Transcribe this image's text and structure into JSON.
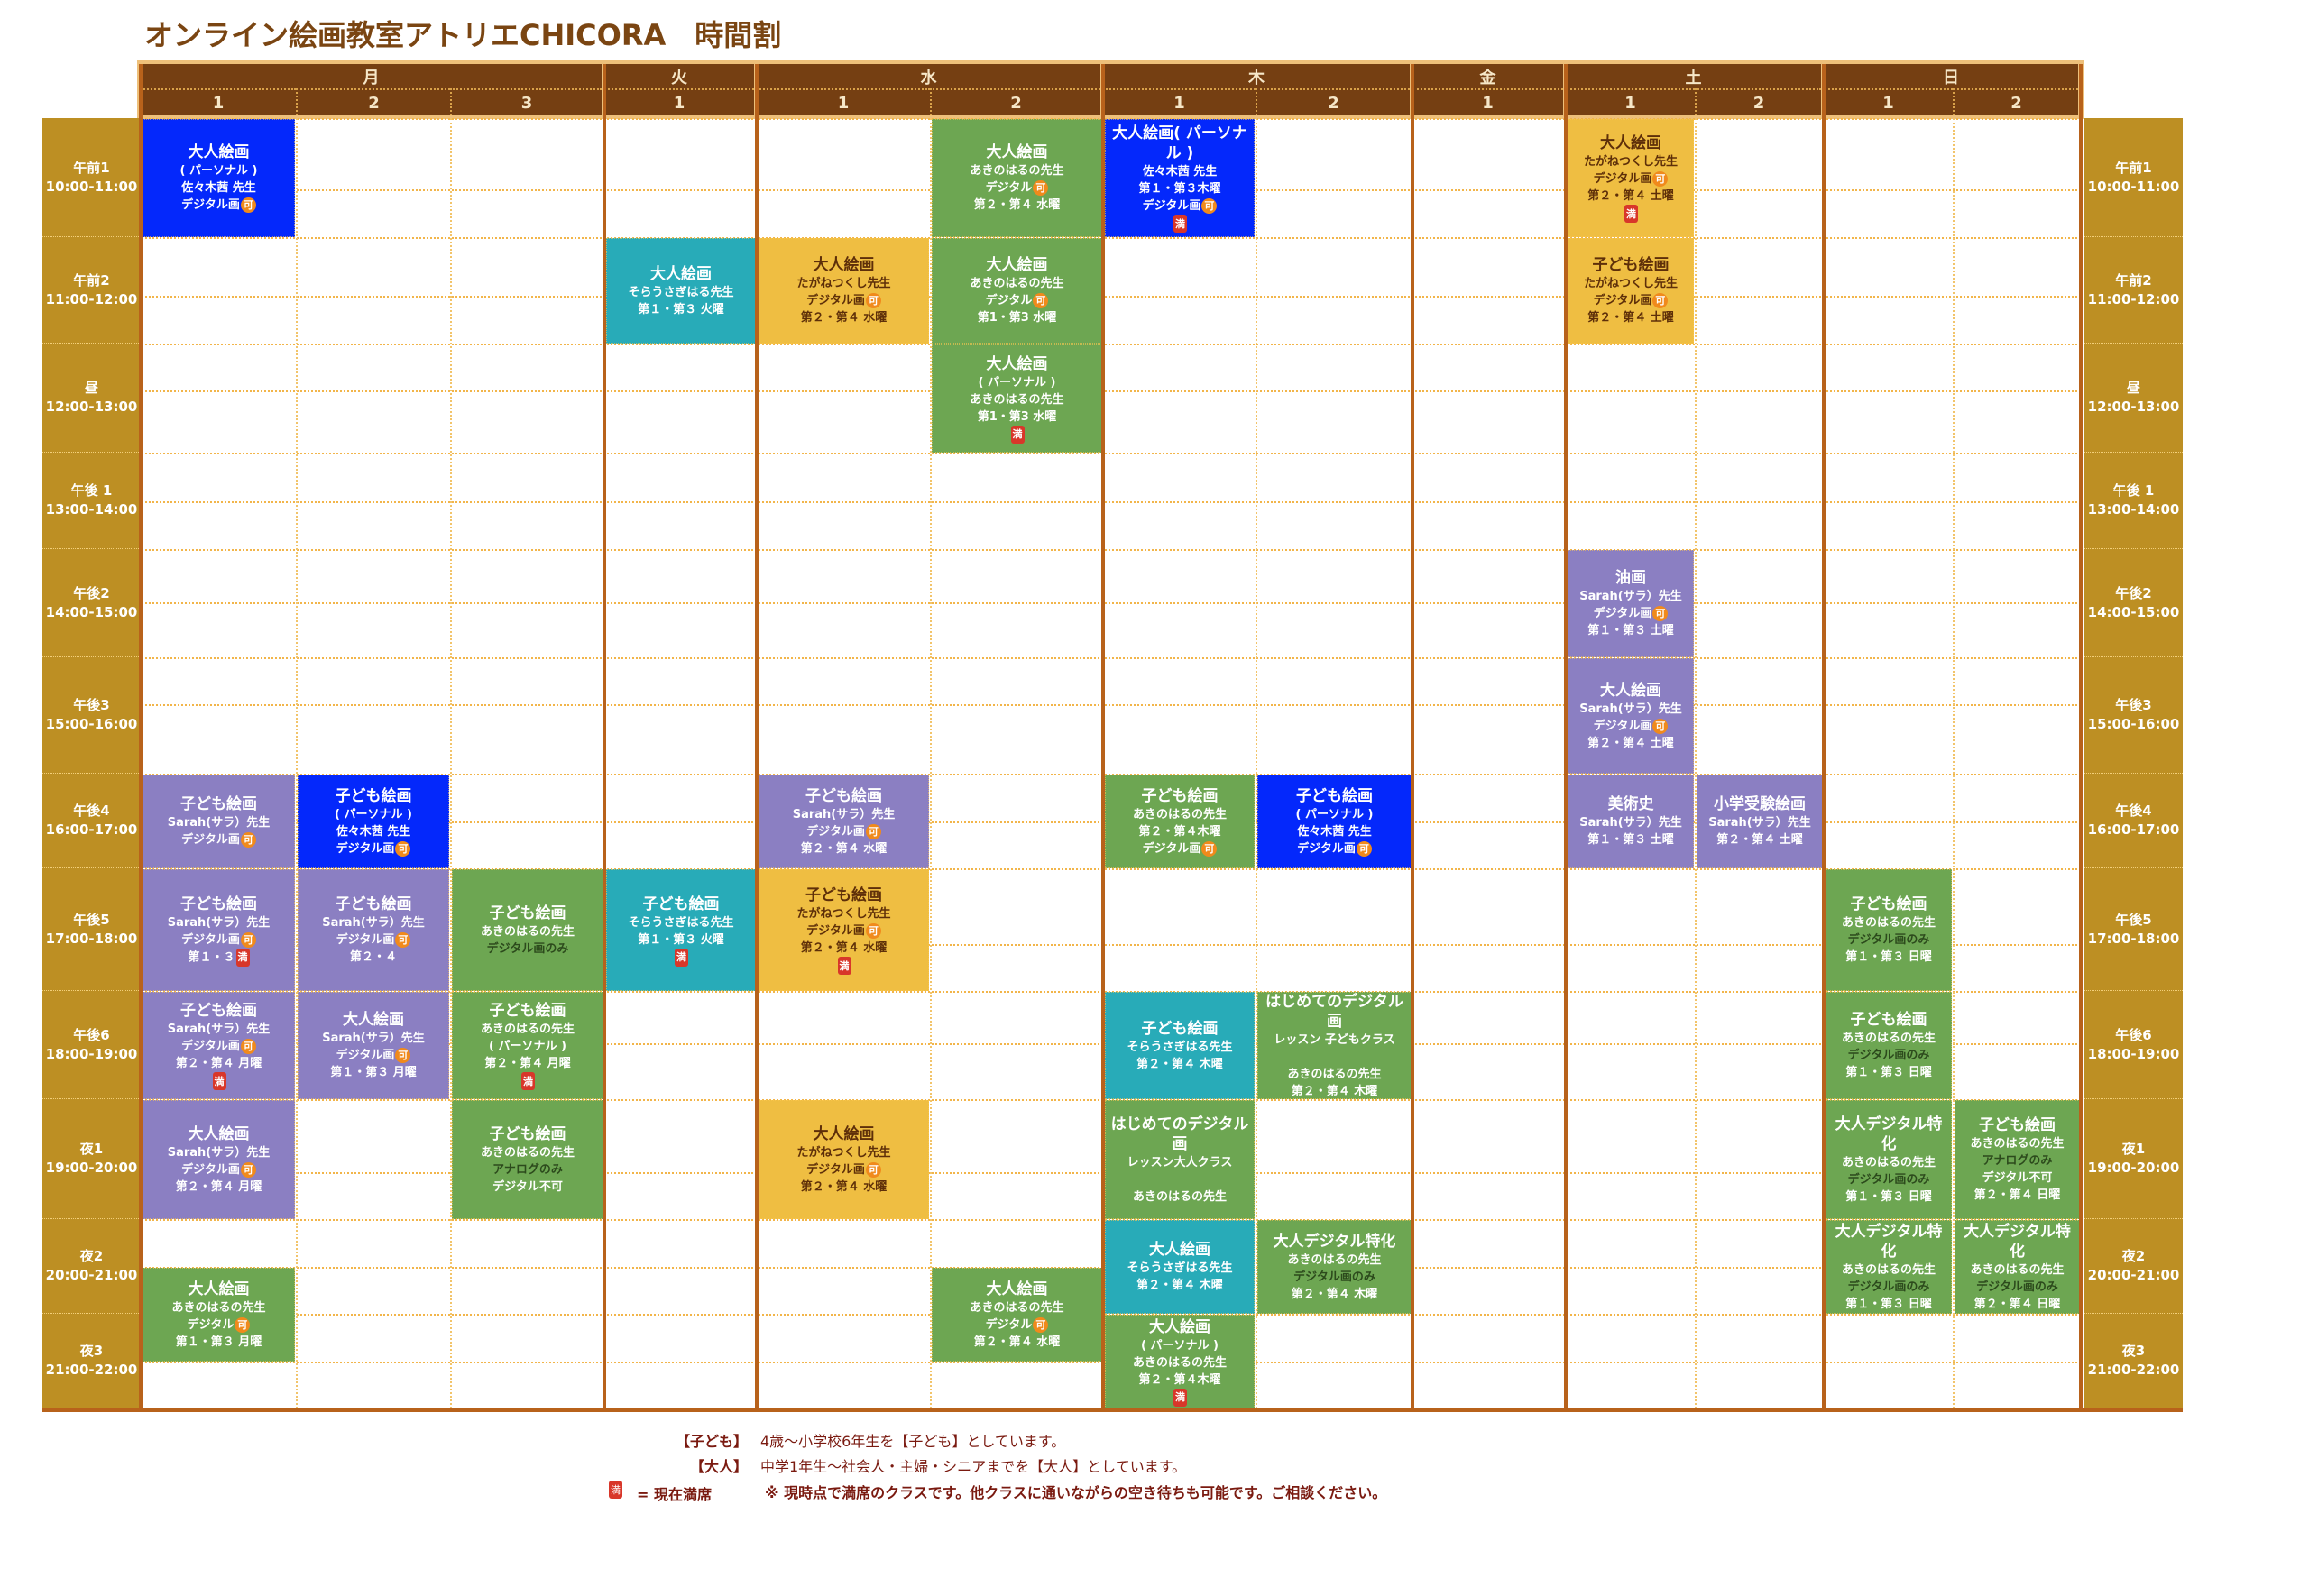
{
  "title": "オンライン絵画教室アトリエCHICORA　時間割",
  "colors": {
    "header": "#753f12",
    "time": "#bd8f23",
    "blue": "#0428fb",
    "green": "#6da652",
    "purple": "#8b7fc2",
    "teal": "#28abb8",
    "yellow": "#efbe42",
    "badge_ka": "#f08a1c",
    "badge_man": "#d8372a"
  },
  "days": [
    {
      "label": "月",
      "cols": [
        "1",
        "2",
        "3"
      ]
    },
    {
      "label": "火",
      "cols": [
        "1"
      ]
    },
    {
      "label": "水",
      "cols": [
        "1",
        "2"
      ]
    },
    {
      "label": "木",
      "cols": [
        "1",
        "2"
      ]
    },
    {
      "label": "金",
      "cols": [
        "1"
      ]
    },
    {
      "label": "土",
      "cols": [
        "1",
        "2"
      ]
    },
    {
      "label": "日",
      "cols": [
        "1",
        "2"
      ]
    }
  ],
  "time_slots": [
    {
      "name": "午前1",
      "range": "10:00-11:00"
    },
    {
      "name": "午前2",
      "range": "11:00-12:00"
    },
    {
      "name": "昼",
      "range": "12:00-13:00"
    },
    {
      "name": "午後 1",
      "range": "13:00-14:00"
    },
    {
      "name": "午後2",
      "range": "14:00-15:00"
    },
    {
      "name": "午後3",
      "range": "15:00-16:00"
    },
    {
      "name": "午後4",
      "range": "16:00-17:00"
    },
    {
      "name": "午後5",
      "range": "17:00-18:00"
    },
    {
      "name": "午後6",
      "range": "18:00-19:00"
    },
    {
      "name": "夜1",
      "range": "19:00-20:00"
    },
    {
      "name": "夜2",
      "range": "20:00-21:00"
    },
    {
      "name": "夜3",
      "range": "21:00-22:00"
    }
  ],
  "classes": [
    {
      "day": 0,
      "col": 0,
      "start": "10:00",
      "end": "11:00",
      "color": "blue",
      "lines": [
        {
          "text": "大人絵画"
        },
        {
          "text": "( パーソナル )"
        },
        {
          "text": "佐々木茜 先生"
        },
        {
          "text": "デジタル画",
          "badge": "可"
        }
      ]
    },
    {
      "day": 2,
      "col": 1,
      "start": "10:00",
      "end": "11:00",
      "color": "green",
      "lines": [
        {
          "text": "大人絵画"
        },
        {
          "text": "あきのはるの先生"
        },
        {
          "text": "デジタル",
          "badge": "可"
        },
        {
          "text": "第２・第４ 水曜"
        }
      ]
    },
    {
      "day": 3,
      "col": 0,
      "start": "10:00",
      "end": "11:00",
      "color": "blue",
      "lines": [
        {
          "text": "大人絵画( パーソナル )"
        },
        {
          "text": "佐々木茜 先生"
        },
        {
          "text": "第１・第３木曜"
        },
        {
          "text": "デジタル画",
          "badge": "可"
        },
        {
          "text": "",
          "badge": "満"
        }
      ]
    },
    {
      "day": 5,
      "col": 0,
      "start": "10:00",
      "end": "11:00",
      "color": "yellow",
      "lines": [
        {
          "text": "大人絵画"
        },
        {
          "text": "たがねつくし先生"
        },
        {
          "text": "デジタル画",
          "badge": "可"
        },
        {
          "text": "第２・第４ 土曜"
        },
        {
          "text": "",
          "badge": "満"
        }
      ]
    },
    {
      "day": 1,
      "col": 0,
      "start": "11:00",
      "end": "12:00",
      "color": "teal",
      "lines": [
        {
          "text": "大人絵画"
        },
        {
          "text": "そらうさぎはる先生"
        },
        {
          "text": "第１・第３ 火曜"
        }
      ]
    },
    {
      "day": 2,
      "col": 0,
      "start": "11:00",
      "end": "12:00",
      "color": "yellow",
      "lines": [
        {
          "text": "大人絵画"
        },
        {
          "text": "たがねつくし先生"
        },
        {
          "text": "デジタル画",
          "badge": "可"
        },
        {
          "text": "第２・第４ 水曜"
        }
      ]
    },
    {
      "day": 2,
      "col": 1,
      "start": "11:00",
      "end": "12:00",
      "color": "green",
      "lines": [
        {
          "text": "大人絵画"
        },
        {
          "text": "あきのはるの先生"
        },
        {
          "text": "デジタル",
          "badge": "可"
        },
        {
          "text": "第1・第3 水曜"
        }
      ]
    },
    {
      "day": 5,
      "col": 0,
      "start": "11:00",
      "end": "12:00",
      "color": "yellow",
      "lines": [
        {
          "text": "子ども絵画"
        },
        {
          "text": "たがねつくし先生"
        },
        {
          "text": "デジタル画",
          "badge": "可"
        },
        {
          "text": "第２・第４ 土曜"
        }
      ]
    },
    {
      "day": 2,
      "col": 1,
      "start": "12:00",
      "end": "13:00",
      "color": "green",
      "lines": [
        {
          "text": "大人絵画"
        },
        {
          "text": "( パーソナル )"
        },
        {
          "text": "あきのはるの先生"
        },
        {
          "text": "第1・第3 水曜"
        },
        {
          "text": "",
          "badge": "満"
        }
      ]
    },
    {
      "day": 5,
      "col": 0,
      "start": "14:00",
      "end": "15:00",
      "color": "purple",
      "lines": [
        {
          "text": "油画"
        },
        {
          "text": "Sarah(サラ）先生"
        },
        {
          "text": "デジタル画",
          "badge": "可"
        },
        {
          "text": "第１・第３ 土曜"
        }
      ]
    },
    {
      "day": 5,
      "col": 0,
      "start": "15:00",
      "end": "16:00",
      "color": "purple",
      "lines": [
        {
          "text": "大人絵画"
        },
        {
          "text": "Sarah(サラ）先生"
        },
        {
          "text": "デジタル画",
          "badge": "可"
        },
        {
          "text": "第２・第４ 土曜"
        }
      ]
    },
    {
      "day": 0,
      "col": 0,
      "start": "16:00",
      "end": "17:00",
      "color": "purple",
      "lines": [
        {
          "text": "子ども絵画"
        },
        {
          "text": "Sarah(サラ）先生"
        },
        {
          "text": "デジタル画",
          "badge": "可"
        }
      ]
    },
    {
      "day": 0,
      "col": 1,
      "start": "16:00",
      "end": "17:00",
      "color": "blue",
      "lines": [
        {
          "text": "子ども絵画"
        },
        {
          "text": "( パーソナル )"
        },
        {
          "text": "佐々木茜 先生"
        },
        {
          "text": "デジタル画",
          "badge": "可"
        }
      ]
    },
    {
      "day": 2,
      "col": 0,
      "start": "16:00",
      "end": "17:00",
      "color": "purple",
      "lines": [
        {
          "text": "子ども絵画"
        },
        {
          "text": "Sarah(サラ）先生"
        },
        {
          "text": "デジタル画",
          "badge": "可"
        },
        {
          "text": "第２・第４ 水曜"
        }
      ]
    },
    {
      "day": 3,
      "col": 0,
      "start": "16:00",
      "end": "17:00",
      "color": "green",
      "lines": [
        {
          "text": "子ども絵画"
        },
        {
          "text": "あきのはるの先生"
        },
        {
          "text": "第２・第４木曜"
        },
        {
          "text": "デジタル画",
          "badge": "可"
        }
      ]
    },
    {
      "day": 3,
      "col": 1,
      "start": "16:00",
      "end": "17:00",
      "color": "blue",
      "lines": [
        {
          "text": "子ども絵画"
        },
        {
          "text": "( パーソナル )"
        },
        {
          "text": "佐々木茜 先生"
        },
        {
          "text": "デジタル画",
          "badge": "可"
        }
      ]
    },
    {
      "day": 5,
      "col": 0,
      "start": "16:00",
      "end": "17:00",
      "color": "purple",
      "lines": [
        {
          "text": "美術史"
        },
        {
          "text": "Sarah(サラ）先生"
        },
        {
          "text": "第１・第３ 土曜"
        }
      ]
    },
    {
      "day": 5,
      "col": 1,
      "start": "16:00",
      "end": "17:00",
      "color": "purple",
      "lines": [
        {
          "text": "小学受験絵画"
        },
        {
          "text": "Sarah(サラ）先生"
        },
        {
          "text": "第２・第４ 土曜"
        }
      ]
    },
    {
      "day": 0,
      "col": 0,
      "start": "17:00",
      "end": "18:00",
      "color": "purple",
      "lines": [
        {
          "text": "子ども絵画"
        },
        {
          "text": "Sarah(サラ）先生"
        },
        {
          "text": "デジタル画",
          "badge": "可"
        },
        {
          "text": "第１・３",
          "badge": "満"
        }
      ]
    },
    {
      "day": 0,
      "col": 1,
      "start": "17:00",
      "end": "18:00",
      "color": "purple",
      "lines": [
        {
          "text": "子ども絵画"
        },
        {
          "text": "Sarah(サラ）先生"
        },
        {
          "text": "デジタル画",
          "badge": "可"
        },
        {
          "text": "第２・４"
        }
      ]
    },
    {
      "day": 0,
      "col": 2,
      "start": "17:00",
      "end": "18:00",
      "color": "green",
      "lines": [
        {
          "text": "子ども絵画"
        },
        {
          "text": "あきのはるの先生"
        },
        {
          "text": "デジタル画のみ",
          "tone": "dark"
        }
      ]
    },
    {
      "day": 1,
      "col": 0,
      "start": "17:00",
      "end": "18:00",
      "color": "teal",
      "lines": [
        {
          "text": "子ども絵画"
        },
        {
          "text": "そらうさぎはる先生"
        },
        {
          "text": "第１・第３ 火曜"
        },
        {
          "text": "",
          "badge": "満"
        }
      ]
    },
    {
      "day": 2,
      "col": 0,
      "start": "17:00",
      "end": "18:00",
      "color": "yellow",
      "lines": [
        {
          "text": "子ども絵画"
        },
        {
          "text": "たがねつくし先生"
        },
        {
          "text": "デジタル画",
          "badge": "可"
        },
        {
          "text": "第２・第４ 水曜"
        },
        {
          "text": "",
          "badge": "満"
        }
      ]
    },
    {
      "day": 6,
      "col": 0,
      "start": "17:00",
      "end": "18:00",
      "color": "green",
      "lines": [
        {
          "text": "子ども絵画"
        },
        {
          "text": "あきのはるの先生"
        },
        {
          "text": "デジタル画のみ",
          "tone": "dark"
        },
        {
          "text": "第１・第３ 日曜"
        }
      ]
    },
    {
      "day": 0,
      "col": 0,
      "start": "18:00",
      "end": "19:00",
      "color": "purple",
      "lines": [
        {
          "text": "子ども絵画"
        },
        {
          "text": "Sarah(サラ）先生"
        },
        {
          "text": "デジタル画",
          "badge": "可"
        },
        {
          "text": "第２・第４ 月曜"
        },
        {
          "text": "",
          "badge": "満"
        }
      ]
    },
    {
      "day": 0,
      "col": 1,
      "start": "18:00",
      "end": "19:00",
      "color": "purple",
      "lines": [
        {
          "text": "大人絵画"
        },
        {
          "text": "Sarah(サラ）先生"
        },
        {
          "text": "デジタル画",
          "badge": "可"
        },
        {
          "text": "第１・第３ 月曜"
        }
      ]
    },
    {
      "day": 0,
      "col": 2,
      "start": "18:00",
      "end": "19:00",
      "color": "green",
      "lines": [
        {
          "text": "子ども絵画"
        },
        {
          "text": "あきのはるの先生"
        },
        {
          "text": "( パーソナル )"
        },
        {
          "text": "第２・第４ 月曜"
        },
        {
          "text": "",
          "badge": "満"
        }
      ]
    },
    {
      "day": 3,
      "col": 0,
      "start": "18:00",
      "end": "19:00",
      "color": "teal",
      "lines": [
        {
          "text": "子ども絵画"
        },
        {
          "text": "そらうさぎはる先生"
        },
        {
          "text": "第２・第４ 木曜"
        }
      ]
    },
    {
      "day": 3,
      "col": 1,
      "start": "18:00",
      "end": "19:00",
      "color": "green",
      "lines": [
        {
          "text": "はじめてのデジタル画"
        },
        {
          "text": "レッスン 子どもクラス"
        },
        {
          "text": " "
        },
        {
          "text": "あきのはるの先生"
        },
        {
          "text": "第２・第４ 木曜"
        }
      ]
    },
    {
      "day": 6,
      "col": 0,
      "start": "18:00",
      "end": "19:00",
      "color": "green",
      "lines": [
        {
          "text": "子ども絵画"
        },
        {
          "text": "あきのはるの先生"
        },
        {
          "text": "デジタル画のみ",
          "tone": "dark"
        },
        {
          "text": "第１・第３ 日曜"
        }
      ]
    },
    {
      "day": 0,
      "col": 0,
      "start": "19:00",
      "end": "20:00",
      "color": "purple",
      "lines": [
        {
          "text": "大人絵画"
        },
        {
          "text": "Sarah(サラ）先生"
        },
        {
          "text": "デジタル画",
          "badge": "可"
        },
        {
          "text": "第２・第４ 月曜"
        }
      ]
    },
    {
      "day": 0,
      "col": 2,
      "start": "19:00",
      "end": "20:00",
      "color": "green",
      "lines": [
        {
          "text": "子ども絵画"
        },
        {
          "text": "あきのはるの先生"
        },
        {
          "text": "アナログのみ",
          "tone": "dark"
        },
        {
          "text": "デジタル不可"
        }
      ]
    },
    {
      "day": 2,
      "col": 0,
      "start": "19:00",
      "end": "20:00",
      "color": "yellow",
      "lines": [
        {
          "text": "大人絵画"
        },
        {
          "text": "たがねつくし先生"
        },
        {
          "text": "デジタル画",
          "badge": "可"
        },
        {
          "text": "第２・第４ 水曜"
        }
      ]
    },
    {
      "day": 3,
      "col": 0,
      "start": "19:00",
      "end": "20:00",
      "color": "green",
      "lines": [
        {
          "text": "はじめてのデジタル画"
        },
        {
          "text": "レッスン大人クラス"
        },
        {
          "text": " "
        },
        {
          "text": "あきのはるの先生"
        }
      ]
    },
    {
      "day": 6,
      "col": 0,
      "start": "19:00",
      "end": "20:00",
      "color": "green",
      "lines": [
        {
          "text": "大人デジタル特化"
        },
        {
          "text": "あきのはるの先生"
        },
        {
          "text": "デジタル画のみ",
          "tone": "dark"
        },
        {
          "text": "第１・第３ 日曜"
        }
      ]
    },
    {
      "day": 6,
      "col": 1,
      "start": "19:00",
      "end": "20:00",
      "color": "green",
      "lines": [
        {
          "text": "子ども絵画"
        },
        {
          "text": "あきのはるの先生"
        },
        {
          "text": "アナログのみ",
          "tone": "dark"
        },
        {
          "text": "デジタル不可"
        },
        {
          "text": "第２・第４ 日曜"
        }
      ]
    },
    {
      "day": 3,
      "col": 0,
      "start": "20:00",
      "end": "21:00",
      "color": "teal",
      "lines": [
        {
          "text": "大人絵画"
        },
        {
          "text": "そらうさぎはる先生"
        },
        {
          "text": "第２・第４ 木曜"
        }
      ]
    },
    {
      "day": 3,
      "col": 1,
      "start": "20:00",
      "end": "21:00",
      "color": "green",
      "lines": [
        {
          "text": "大人デジタル特化"
        },
        {
          "text": "あきのはるの先生"
        },
        {
          "text": "デジタル画のみ",
          "tone": "dark"
        },
        {
          "text": "第２・第４ 木曜"
        }
      ]
    },
    {
      "day": 6,
      "col": 0,
      "start": "20:00",
      "end": "21:00",
      "color": "green",
      "lines": [
        {
          "text": "大人デジタル特化"
        },
        {
          "text": "あきのはるの先生"
        },
        {
          "text": "デジタル画のみ",
          "tone": "dark"
        },
        {
          "text": "第１・第３ 日曜"
        }
      ]
    },
    {
      "day": 6,
      "col": 1,
      "start": "20:00",
      "end": "21:00",
      "color": "green",
      "lines": [
        {
          "text": "大人デジタル特化"
        },
        {
          "text": "あきのはるの先生"
        },
        {
          "text": "デジタル画のみ",
          "tone": "dark"
        },
        {
          "text": "第２・第４ 日曜"
        }
      ]
    },
    {
      "day": 0,
      "col": 0,
      "start": "20:30",
      "end": "21:30",
      "color": "green",
      "lines": [
        {
          "text": "大人絵画"
        },
        {
          "text": "あきのはるの先生"
        },
        {
          "text": "デジタル",
          "badge": "可"
        },
        {
          "text": "第１・第３ 月曜"
        }
      ]
    },
    {
      "day": 2,
      "col": 1,
      "start": "20:30",
      "end": "21:30",
      "color": "green",
      "lines": [
        {
          "text": "大人絵画"
        },
        {
          "text": "あきのはるの先生"
        },
        {
          "text": "デジタル",
          "badge": "可"
        },
        {
          "text": "第２・第４ 水曜"
        }
      ]
    },
    {
      "day": 3,
      "col": 0,
      "start": "21:00",
      "end": "22:00",
      "color": "green",
      "lines": [
        {
          "text": "大人絵画"
        },
        {
          "text": "( パーソナル )"
        },
        {
          "text": "あきのはるの先生"
        },
        {
          "text": "第２・第４木曜"
        },
        {
          "text": "",
          "badge": "満"
        }
      ]
    }
  ],
  "legend": {
    "kids_label": "【子ども】",
    "kids_text": "4歳〜小学校6年生を【子ども】としています。",
    "adult_label": "【大人】",
    "adult_text": "中学1年生〜社会人・主婦・シニアまでを【大人】としています。",
    "full_badge": "満",
    "full_label": "= 現在満席",
    "full_note": "※ 現時点で満席のクラスです。他クラスに通いながらの空き待ちも可能です。ご相談ください。"
  }
}
